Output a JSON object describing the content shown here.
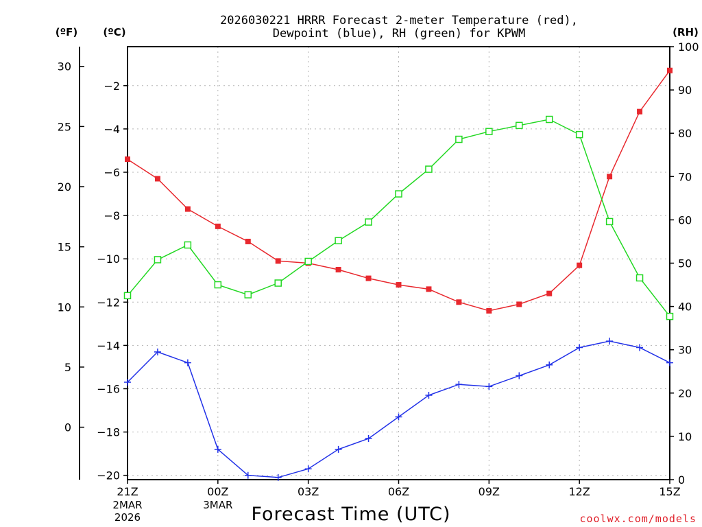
{
  "chart_data": {
    "type": "line",
    "title_line1": "2026030221 HRRR Forecast 2-meter Temperature (red),",
    "title_line2": "Dewpoint (blue), RH (green) for KPWM",
    "xlabel": "Forecast Time (UTC)",
    "credit": "coolwx.com/models",
    "units": {
      "fahrenheit": "(ºF)",
      "celsius": "(ºC)",
      "rh": "(RH)"
    },
    "x_hours": [
      0,
      1,
      2,
      3,
      4,
      5,
      6,
      7,
      8,
      9,
      10,
      11,
      12,
      13,
      14,
      15,
      16,
      17,
      18
    ],
    "x_ticks": [
      {
        "hour": 0,
        "label": "21Z"
      },
      {
        "hour": 3,
        "label": "00Z"
      },
      {
        "hour": 6,
        "label": "03Z"
      },
      {
        "hour": 9,
        "label": "06Z"
      },
      {
        "hour": 12,
        "label": "09Z"
      },
      {
        "hour": 15,
        "label": "12Z"
      },
      {
        "hour": 18,
        "label": "15Z"
      }
    ],
    "date_labels": [
      {
        "hour": 0,
        "line1": "2MAR",
        "line2": "2026"
      },
      {
        "hour": 3,
        "line1": "3MAR",
        "line2": ""
      }
    ],
    "celsius_range": [
      -20.2,
      -0.2
    ],
    "celsius_ticks": [
      -2,
      -4,
      -6,
      -8,
      -10,
      -12,
      -14,
      -16,
      -18,
      -20
    ],
    "fahrenheit_ticks": [
      30,
      25,
      20,
      15,
      10,
      5,
      0
    ],
    "rh_range": [
      0,
      100
    ],
    "rh_ticks": [
      100,
      90,
      80,
      70,
      60,
      50,
      40,
      30,
      20,
      10,
      0
    ],
    "series": [
      {
        "name": "Temperature",
        "axis": "celsius",
        "color": "#e8282e",
        "marker": "filled-square",
        "values": [
          -5.4,
          -6.3,
          -7.7,
          -8.5,
          -9.2,
          -10.1,
          -10.2,
          -10.5,
          -10.9,
          -11.2,
          -11.4,
          -12.0,
          -12.4,
          -12.1,
          -11.6,
          -10.3,
          -6.2,
          -3.2,
          -1.3
        ]
      },
      {
        "name": "Dewpoint",
        "axis": "celsius",
        "color": "#2232e8",
        "marker": "plus",
        "values": [
          -15.7,
          -14.3,
          -14.8,
          -18.8,
          -20.0,
          -20.1,
          -19.7,
          -18.8,
          -18.3,
          -17.3,
          -16.3,
          -15.8,
          -15.9,
          -15.4,
          -14.9,
          -14.1,
          -13.8,
          -14.1,
          -14.8
        ]
      },
      {
        "name": "RH",
        "axis": "rh",
        "color": "#22d822",
        "marker": "open-square",
        "values": [
          42.5,
          50.8,
          54.2,
          45.0,
          42.7,
          45.4,
          50.4,
          55.2,
          59.5,
          66.0,
          71.7,
          78.6,
          80.4,
          81.8,
          83.2,
          79.7,
          59.6,
          46.6,
          37.7
        ]
      }
    ]
  }
}
